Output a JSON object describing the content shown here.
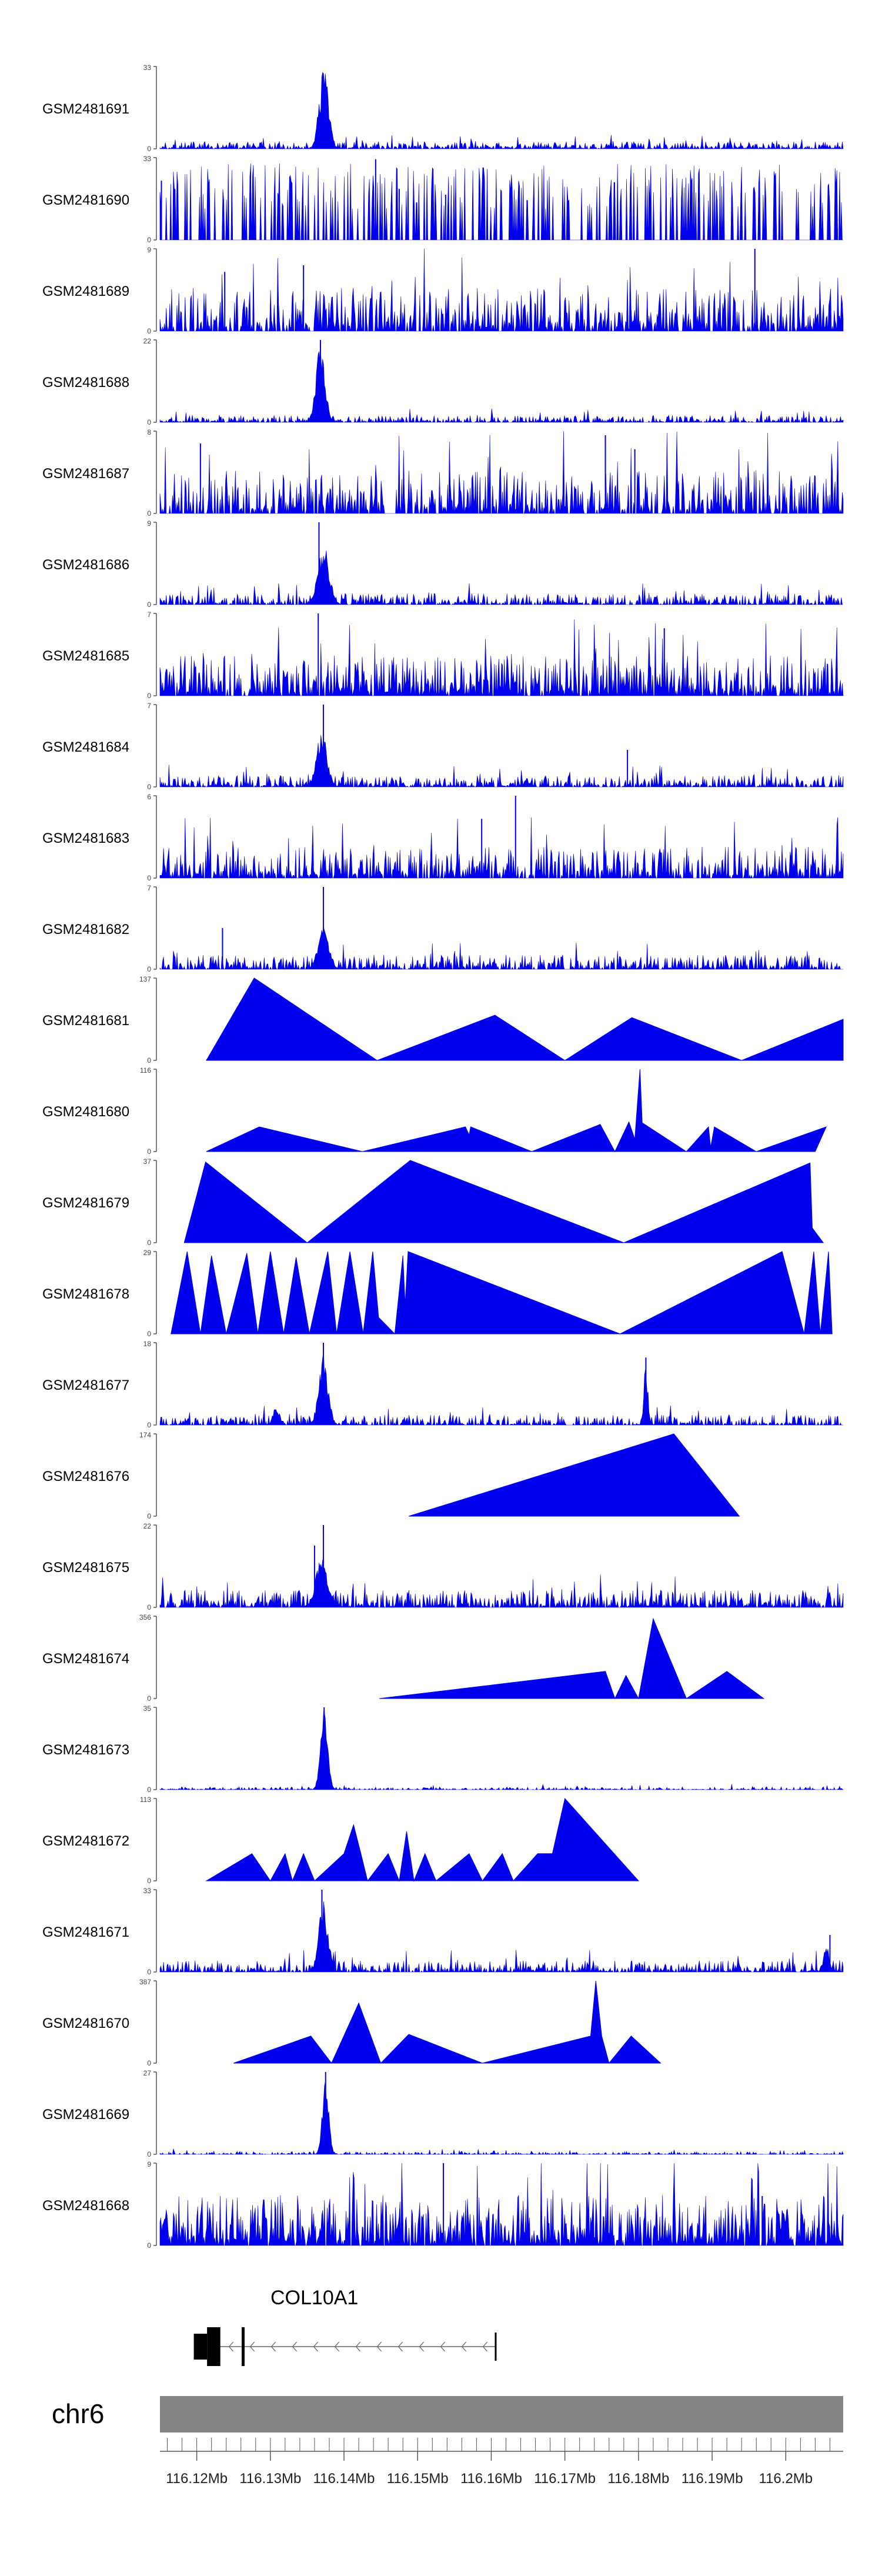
{
  "chart_data": {
    "type": "area",
    "title": "",
    "chromosome": "chr6",
    "xlim_mb": [
      116.115,
      116.2078
    ],
    "x_ticks": [
      {
        "value": 116.12,
        "label": "116.12Mb"
      },
      {
        "value": 116.13,
        "label": "116.13Mb"
      },
      {
        "value": 116.14,
        "label": "116.14Mb"
      },
      {
        "value": 116.15,
        "label": "116.15Mb"
      },
      {
        "value": 116.16,
        "label": "116.16Mb"
      },
      {
        "value": 116.17,
        "label": "116.17Mb"
      },
      {
        "value": 116.18,
        "label": "116.18Mb"
      },
      {
        "value": 116.19,
        "label": "116.19Mb"
      },
      {
        "value": 116.2,
        "label": "116.2Mb"
      }
    ],
    "colors": {
      "signal": "#0000ee",
      "axis": "#555555",
      "ideogram": "#858585",
      "gene": "#000000"
    },
    "gene": {
      "name": "COL10A1",
      "strand": "-",
      "start_mb": 116.1196,
      "end_mb": 116.1606,
      "exon_blocks": [
        {
          "start": 116.1196,
          "end": 116.1214,
          "thick": false
        },
        {
          "start": 116.1214,
          "end": 116.1232,
          "thick": true
        },
        {
          "start": 116.1261,
          "end": 116.1265,
          "thick": true
        }
      ]
    },
    "tracks": [
      {
        "name": "GSM2481691",
        "ymax": 33,
        "style": "noise",
        "baseline": 0.05,
        "density": 0.75,
        "peaks": [
          [
            116.1373,
            1.0,
            0.0009
          ],
          [
            116.1365,
            0.45,
            0.0004
          ]
        ],
        "spikes": [],
        "seed": 11
      },
      {
        "name": "GSM2481690",
        "ymax": 33,
        "style": "sparse",
        "baseline": 0.38,
        "spread": 0.55,
        "peaks": [],
        "spikes": [
          [
            116.1152,
            0.72
          ],
          [
            116.1443,
            0.98
          ],
          [
            116.1475,
            0.62
          ],
          [
            116.1538,
            0.55
          ]
        ],
        "seed": 12
      },
      {
        "name": "GSM2481689",
        "ymax": 9,
        "style": "noise",
        "baseline": 0.3,
        "density": 0.65,
        "peaks": [],
        "spikes": [
          [
            116.1958,
            1.0
          ],
          [
            116.1345,
            0.8
          ],
          [
            116.1238,
            0.72
          ]
        ],
        "seed": 13
      },
      {
        "name": "GSM2481688",
        "ymax": 22,
        "style": "noise",
        "baseline": 0.05,
        "density": 0.72,
        "peaks": [
          [
            116.1368,
            0.95,
            0.0009
          ]
        ],
        "spikes": [
          [
            116.1368,
            1.0
          ]
        ],
        "seed": 14
      },
      {
        "name": "GSM2481687",
        "ymax": 8,
        "style": "noise",
        "baseline": 0.3,
        "density": 0.6,
        "peaks": [],
        "spikes": [
          [
            116.1755,
            0.95
          ],
          [
            116.1205,
            0.85
          ],
          [
            116.1795,
            0.78
          ]
        ],
        "seed": 15
      },
      {
        "name": "GSM2481686",
        "ymax": 9,
        "style": "noise",
        "baseline": 0.08,
        "density": 0.7,
        "peaks": [
          [
            116.1372,
            0.75,
            0.0011
          ]
        ],
        "spikes": [
          [
            116.1366,
            1.0
          ]
        ],
        "seed": 16
      },
      {
        "name": "GSM2481685",
        "ymax": 7,
        "style": "noise",
        "baseline": 0.28,
        "density": 0.75,
        "peaks": [],
        "spikes": [
          [
            116.1365,
            1.0
          ],
          [
            116.1835,
            0.82
          ]
        ],
        "seed": 17
      },
      {
        "name": "GSM2481684",
        "ymax": 7,
        "style": "noise",
        "baseline": 0.08,
        "density": 0.7,
        "peaks": [
          [
            116.137,
            0.7,
            0.001
          ]
        ],
        "spikes": [
          [
            116.1372,
            1.0
          ],
          [
            116.1785,
            0.45
          ]
        ],
        "seed": 18
      },
      {
        "name": "GSM2481683",
        "ymax": 6,
        "style": "noise",
        "baseline": 0.22,
        "density": 0.7,
        "peaks": [],
        "spikes": [
          [
            116.1633,
            1.0
          ],
          [
            116.1587,
            0.72
          ]
        ],
        "seed": 19
      },
      {
        "name": "GSM2481682",
        "ymax": 7,
        "style": "noise",
        "baseline": 0.1,
        "density": 0.7,
        "peaks": [
          [
            116.1372,
            0.6,
            0.001
          ]
        ],
        "spikes": [
          [
            116.1372,
            1.0
          ],
          [
            116.1235,
            0.5
          ]
        ],
        "seed": 20
      },
      {
        "name": "GSM2481681",
        "ymax": 137,
        "style": "triangles",
        "points": [
          [
            116.1213,
            0
          ],
          [
            116.1278,
            1.0
          ],
          [
            116.1445,
            0
          ],
          [
            116.1605,
            0.55
          ],
          [
            116.17,
            0
          ],
          [
            116.1791,
            0.52
          ],
          [
            116.194,
            0
          ],
          [
            116.2078,
            0.5
          ]
        ]
      },
      {
        "name": "GSM2481680",
        "ymax": 116,
        "style": "triangles",
        "points": [
          [
            116.1213,
            0
          ],
          [
            116.1285,
            0.3
          ],
          [
            116.1425,
            0
          ],
          [
            116.1565,
            0.3
          ],
          [
            116.157,
            0.2
          ],
          [
            116.1572,
            0.3
          ],
          [
            116.1655,
            0
          ],
          [
            116.1748,
            0.33
          ],
          [
            116.1768,
            0
          ],
          [
            116.1787,
            0.36
          ],
          [
            116.1795,
            0.15
          ],
          [
            116.1802,
            1.0
          ],
          [
            116.1805,
            0.35
          ],
          [
            116.1865,
            0
          ],
          [
            116.1895,
            0.3
          ],
          [
            116.1898,
            0.05
          ],
          [
            116.1903,
            0.3
          ],
          [
            116.196,
            0
          ],
          [
            116.2055,
            0.3
          ],
          [
            116.204,
            0
          ]
        ]
      },
      {
        "name": "GSM2481679",
        "ymax": 37,
        "style": "triangles",
        "points": [
          [
            116.1183,
            0
          ],
          [
            116.1212,
            0.98
          ],
          [
            116.135,
            0
          ],
          [
            116.149,
            1.0
          ],
          [
            116.178,
            0
          ],
          [
            116.2033,
            0.97
          ],
          [
            116.2036,
            0.18
          ],
          [
            116.2051,
            0
          ]
        ]
      },
      {
        "name": "GSM2481678",
        "ymax": 29,
        "style": "triangles",
        "points": [
          [
            116.1165,
            0
          ],
          [
            116.1187,
            1.0
          ],
          [
            116.1205,
            0
          ],
          [
            116.122,
            0.95
          ],
          [
            116.124,
            0
          ],
          [
            116.1268,
            0.98
          ],
          [
            116.1283,
            0
          ],
          [
            116.13,
            1.0
          ],
          [
            116.1318,
            0
          ],
          [
            116.1335,
            0.93
          ],
          [
            116.1353,
            0
          ],
          [
            116.1378,
            1.0
          ],
          [
            116.139,
            0
          ],
          [
            116.1408,
            1.0
          ],
          [
            116.1426,
            0
          ],
          [
            116.1439,
            1.0
          ],
          [
            116.1447,
            0.2
          ],
          [
            116.1469,
            0
          ],
          [
            116.148,
            0.95
          ],
          [
            116.1483,
            0.35
          ],
          [
            116.1487,
            1.0
          ],
          [
            116.1775,
            0
          ],
          [
            116.1995,
            1.0
          ],
          [
            116.2025,
            0
          ],
          [
            116.2038,
            1.0
          ],
          [
            116.2047,
            0
          ],
          [
            116.2058,
            1.0
          ],
          [
            116.2063,
            0
          ]
        ]
      },
      {
        "name": "GSM2481677",
        "ymax": 18,
        "style": "noise",
        "baseline": 0.07,
        "density": 0.65,
        "peaks": [
          [
            116.1372,
            0.9,
            0.0009
          ],
          [
            116.1308,
            0.25,
            0.0006
          ],
          [
            116.181,
            0.75,
            0.0004
          ]
        ],
        "spikes": [
          [
            116.1372,
            1.0
          ],
          [
            116.181,
            0.82
          ]
        ],
        "seed": 21
      },
      {
        "name": "GSM2481676",
        "ymax": 174,
        "style": "triangles",
        "points": [
          [
            116.1488,
            0
          ],
          [
            116.1848,
            1.0
          ],
          [
            116.1937,
            0
          ]
        ]
      },
      {
        "name": "GSM2481675",
        "ymax": 22,
        "style": "noise",
        "baseline": 0.12,
        "density": 0.75,
        "peaks": [
          [
            116.137,
            0.6,
            0.0012
          ]
        ],
        "spikes": [
          [
            116.1372,
            1.0
          ],
          [
            116.136,
            0.75
          ]
        ],
        "seed": 22
      },
      {
        "name": "GSM2481674",
        "ymax": 356,
        "style": "triangles",
        "points": [
          [
            116.1448,
            0
          ],
          [
            116.1755,
            0.33
          ],
          [
            116.1768,
            0
          ],
          [
            116.1783,
            0.28
          ],
          [
            116.18,
            0
          ],
          [
            116.182,
            0.97
          ],
          [
            116.1865,
            0
          ],
          [
            116.192,
            0.33
          ],
          [
            116.197,
            0
          ]
        ]
      },
      {
        "name": "GSM2481673",
        "ymax": 35,
        "style": "noise",
        "baseline": 0.02,
        "density": 0.55,
        "peaks": [
          [
            116.1373,
            1.0,
            0.0007
          ]
        ],
        "spikes": [
          [
            116.1373,
            1.0
          ]
        ],
        "seed": 23
      },
      {
        "name": "GSM2481672",
        "ymax": 113,
        "style": "triangles",
        "points": [
          [
            116.1213,
            0
          ],
          [
            116.1275,
            0.33
          ],
          [
            116.13,
            0
          ],
          [
            116.132,
            0.33
          ],
          [
            116.133,
            0
          ],
          [
            116.1345,
            0.33
          ],
          [
            116.136,
            0
          ],
          [
            116.14,
            0.33
          ],
          [
            116.1413,
            0.68
          ],
          [
            116.1423,
            0.33
          ],
          [
            116.1432,
            0
          ],
          [
            116.146,
            0.33
          ],
          [
            116.1475,
            0
          ],
          [
            116.1485,
            0.6
          ],
          [
            116.1495,
            0
          ],
          [
            116.151,
            0.33
          ],
          [
            116.1525,
            0
          ],
          [
            116.157,
            0.33
          ],
          [
            116.1588,
            0
          ],
          [
            116.1615,
            0.33
          ],
          [
            116.163,
            0
          ],
          [
            116.1663,
            0.33
          ],
          [
            116.1683,
            0.33
          ],
          [
            116.17,
            1.0
          ],
          [
            116.18,
            0
          ]
        ]
      },
      {
        "name": "GSM2481671",
        "ymax": 33,
        "style": "noise",
        "baseline": 0.08,
        "density": 0.7,
        "peaks": [
          [
            116.1372,
            0.9,
            0.0009
          ],
          [
            116.2055,
            0.4,
            0.0005
          ]
        ],
        "spikes": [
          [
            116.137,
            1.0
          ],
          [
            116.206,
            0.45
          ]
        ],
        "seed": 24
      },
      {
        "name": "GSM2481670",
        "ymax": 387,
        "style": "triangles",
        "points": [
          [
            116.125,
            0
          ],
          [
            116.1355,
            0.33
          ],
          [
            116.1383,
            0
          ],
          [
            116.142,
            0.73
          ],
          [
            116.145,
            0
          ],
          [
            116.1488,
            0.35
          ],
          [
            116.1588,
            0
          ],
          [
            116.1735,
            0.33
          ],
          [
            116.1742,
            1.0
          ],
          [
            116.175,
            0.33
          ],
          [
            116.176,
            0
          ],
          [
            116.179,
            0.33
          ],
          [
            116.183,
            0
          ]
        ]
      },
      {
        "name": "GSM2481669",
        "ymax": 27,
        "style": "noise",
        "baseline": 0.02,
        "density": 0.5,
        "peaks": [
          [
            116.1375,
            1.0,
            0.0006
          ]
        ],
        "spikes": [
          [
            116.1375,
            1.0
          ]
        ],
        "seed": 25
      },
      {
        "name": "GSM2481668",
        "ymax": 9,
        "style": "noise",
        "baseline": 0.35,
        "density": 0.8,
        "peaks": [],
        "spikes": [
          [
            116.1535,
            1.0
          ],
          [
            116.1968,
            0.6
          ]
        ],
        "seed": 26
      }
    ]
  }
}
